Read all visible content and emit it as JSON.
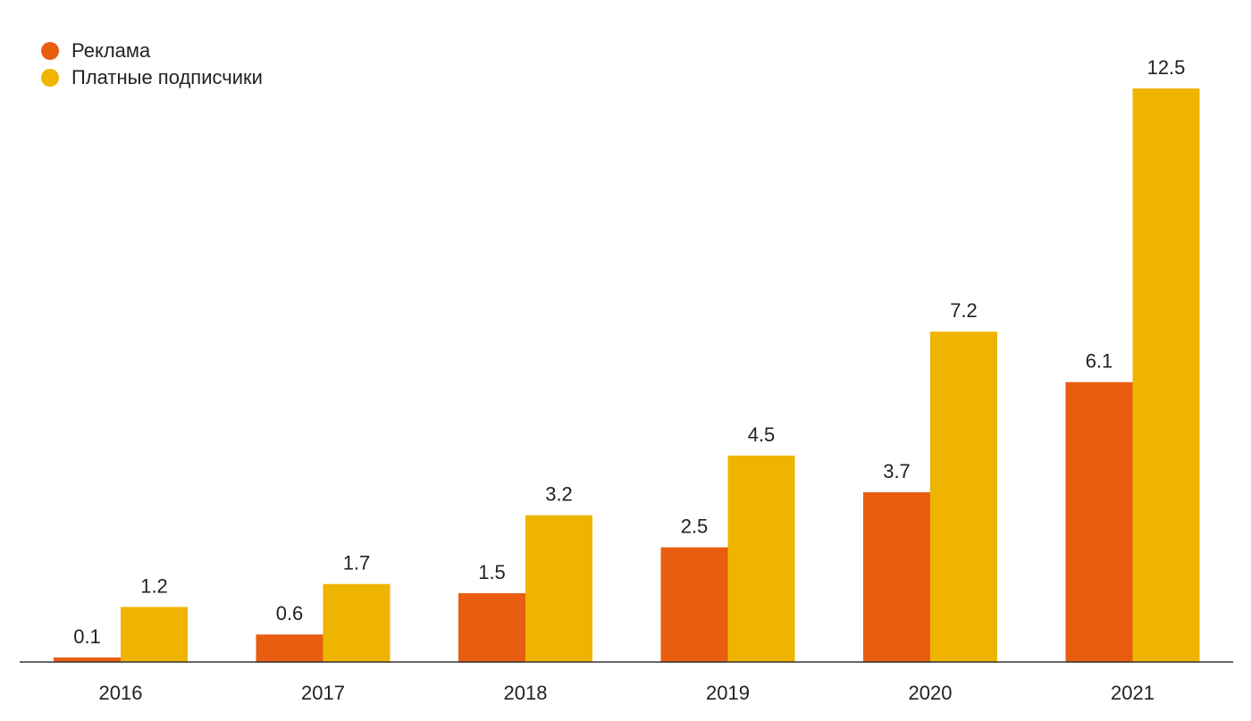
{
  "chart_data": {
    "type": "bar",
    "title": "",
    "xlabel": "",
    "ylabel": "",
    "categories": [
      "2016",
      "2017",
      "2018",
      "2019",
      "2020",
      "2021"
    ],
    "series": [
      {
        "name": "Реклама",
        "color": "#e85d10",
        "values": [
          0.1,
          0.6,
          1.5,
          2.5,
          3.7,
          6.1
        ]
      },
      {
        "name": "Платные подписчики",
        "color": "#efb400",
        "values": [
          1.2,
          1.7,
          3.2,
          4.5,
          7.2,
          12.5
        ]
      }
    ],
    "value_labels": {
      "s0": [
        "0.1",
        "0.6",
        "1.5",
        "2.5",
        "3.7",
        "6.1"
      ],
      "s1": [
        "1.2",
        "1.7",
        "3.2",
        "4.5",
        "7.2",
        "12.5"
      ]
    },
    "ylim": [
      0,
      12.5
    ],
    "grid": false,
    "legend_position": "top-left"
  }
}
